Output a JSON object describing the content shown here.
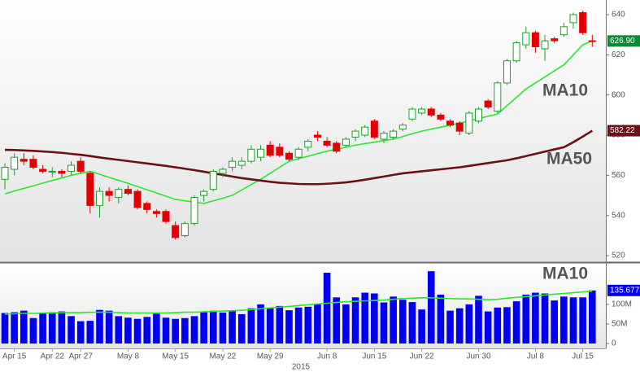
{
  "chart_data": [
    {
      "type": "candlestick",
      "open": [
        558,
        563,
        568,
        568,
        563,
        562,
        562,
        562,
        567,
        561,
        545,
        552,
        549,
        553,
        552,
        546,
        542,
        542,
        535,
        530,
        536,
        550,
        553,
        561,
        564,
        565,
        567,
        569,
        575,
        574,
        571,
        569,
        574,
        580,
        577,
        576,
        575,
        579,
        580,
        587,
        578,
        579,
        583,
        588,
        591,
        593,
        590,
        587,
        586,
        581,
        587,
        597,
        592,
        606,
        617,
        625,
        631,
        623,
        628,
        630,
        636,
        641,
        627
      ],
      "high": [
        566,
        571,
        571,
        570,
        565,
        564,
        563,
        567,
        569,
        562,
        554,
        554,
        554,
        555,
        553,
        547,
        543,
        543,
        537,
        537,
        550,
        553,
        563,
        564,
        569,
        569,
        575,
        575,
        577,
        576,
        572,
        574,
        578,
        582,
        579,
        577,
        579,
        583,
        585,
        588,
        582,
        583,
        586,
        594,
        594,
        594,
        591,
        588,
        587,
        592,
        594,
        598,
        607,
        618,
        627,
        634,
        632,
        630,
        629,
        636,
        641,
        642,
        630
      ],
      "low": [
        553,
        560,
        565,
        563,
        561,
        559,
        559,
        560,
        561,
        541,
        539,
        547,
        546,
        550,
        543,
        541,
        539,
        536,
        528,
        529,
        535,
        547,
        552,
        559,
        562,
        563,
        566,
        567,
        569,
        569,
        567,
        568,
        572,
        577,
        574,
        571,
        574,
        577,
        579,
        578,
        576,
        578,
        582,
        587,
        590,
        589,
        587,
        584,
        580,
        580,
        586,
        593,
        591,
        605,
        616,
        623,
        621,
        617,
        626,
        629,
        633,
        630,
        624
      ],
      "close": [
        564,
        569,
        567,
        564,
        562,
        562,
        561,
        565,
        562,
        545,
        552,
        550,
        553,
        551,
        544,
        543,
        541,
        537,
        529,
        536,
        549,
        552,
        562,
        563,
        567,
        567,
        573,
        573,
        570,
        570,
        568,
        573,
        577,
        579,
        575,
        572,
        578,
        582,
        584,
        579,
        581,
        582,
        585,
        593,
        593,
        590,
        588,
        585,
        582,
        591,
        593,
        594,
        606,
        617,
        626,
        631,
        624,
        627,
        627,
        634,
        640,
        631,
        626.9
      ],
      "close_label": "626.90",
      "up_color": "#1f9e2a",
      "down_color": "#e30000",
      "series": [
        {
          "name": "MA10",
          "color": "#2ee62e",
          "values": [
            550.8,
            552.2,
            553.5,
            554.8,
            556.1,
            557.4,
            558.7,
            560,
            561,
            562,
            560.5,
            559,
            557.5,
            556,
            554.4,
            552.8,
            551.2,
            549.6,
            548,
            547.3,
            546.6,
            546,
            547.3,
            548.6,
            550,
            552.7,
            555.4,
            558,
            561,
            564,
            567,
            568.3,
            569.5,
            570.8,
            572,
            573,
            574,
            575,
            575.8,
            576.5,
            577.3,
            578,
            579.3,
            580.7,
            582,
            583,
            584,
            585,
            586,
            587.1,
            588.3,
            589.4,
            590.5,
            594.7,
            598.8,
            603,
            606,
            609,
            612,
            615,
            620,
            625,
            627
          ]
        },
        {
          "name": "MA50",
          "color": "#6b1016",
          "values": [
            572.7,
            572.6,
            572.4,
            572.2,
            571.9,
            571.6,
            571.2,
            570.7,
            570.2,
            569.6,
            568.9,
            568.3,
            567.7,
            567.1,
            566.5,
            565.9,
            565.3,
            564.7,
            564,
            563.3,
            562.6,
            561.8,
            561,
            560.2,
            559.4,
            558.6,
            558,
            557.4,
            556.8,
            556.3,
            556,
            555.7,
            555.6,
            555.6,
            555.8,
            556.1,
            556.5,
            557.1,
            557.8,
            558.6,
            559.4,
            560.2,
            561,
            561.5,
            562,
            562.5,
            563,
            563.5,
            564,
            564.7,
            565.4,
            566.1,
            566.8,
            567.5,
            568.5,
            569.6,
            570.7,
            571.8,
            572.9,
            574,
            576.5,
            579.3,
            582.22
          ]
        }
      ],
      "ann_colors": [
        "#22b832",
        "#8b1a1f"
      ],
      "ylim": [
        517.6,
        647.3
      ],
      "yticks": [
        520,
        540,
        560,
        580,
        600,
        620,
        640
      ]
    },
    {
      "type": "bar",
      "categories": [
        null,
        "Apr 15",
        null,
        null,
        null,
        "Apr 22",
        null,
        null,
        "Apr 27",
        null,
        null,
        null,
        null,
        "May 8",
        null,
        null,
        null,
        null,
        "May 15",
        null,
        null,
        null,
        null,
        "May 22",
        null,
        null,
        null,
        null,
        "May 29",
        null,
        null,
        null,
        null,
        null,
        "Jun 8",
        null,
        null,
        null,
        null,
        "Jun 15",
        null,
        null,
        null,
        null,
        "Jun 22",
        null,
        null,
        null,
        null,
        null,
        "Jun 30",
        null,
        null,
        null,
        null,
        null,
        "Jul 8",
        null,
        null,
        null,
        null,
        "Jul 15",
        null
      ],
      "xlabel": "2015",
      "series": [
        {
          "color": "#0000f0",
          "values": [
            78,
            80,
            84,
            65,
            77,
            80,
            82,
            70,
            57,
            58,
            86,
            84,
            70,
            66,
            63,
            68,
            76,
            66,
            63,
            65,
            70,
            82,
            84,
            79,
            85,
            75,
            90,
            100,
            90,
            96,
            85,
            92,
            94,
            100,
            181,
            118,
            100,
            118,
            130,
            128,
            105,
            120,
            112,
            106,
            87,
            185,
            125,
            84,
            90,
            100,
            122,
            82,
            92,
            93,
            108,
            125,
            130,
            128,
            110,
            120,
            118,
            118,
            135.677
          ],
          "last_label": "135.677M"
        },
        {
          "name": "MA10",
          "color": "#2ee62e",
          "values": [
            75,
            76,
            77,
            77,
            78,
            78,
            79,
            79,
            79,
            80,
            80,
            80,
            79,
            78,
            78,
            78,
            78,
            78,
            79,
            80,
            80,
            81,
            82,
            83,
            84,
            85,
            87,
            89,
            91,
            93,
            95,
            97,
            99,
            101,
            103,
            105,
            107,
            108,
            109,
            110,
            111,
            113,
            115,
            116,
            117,
            117,
            116,
            115,
            114,
            114,
            113,
            112,
            113,
            116,
            118,
            120,
            122,
            124,
            126,
            128,
            130,
            132,
            133
          ]
        }
      ],
      "ann_color": "#22b832",
      "ylim": [
        0,
        204
      ],
      "yticks": [
        0,
        {
          "value": 50,
          "label": "50M"
        },
        {
          "value": 100,
          "label": "100M"
        }
      ]
    }
  ]
}
